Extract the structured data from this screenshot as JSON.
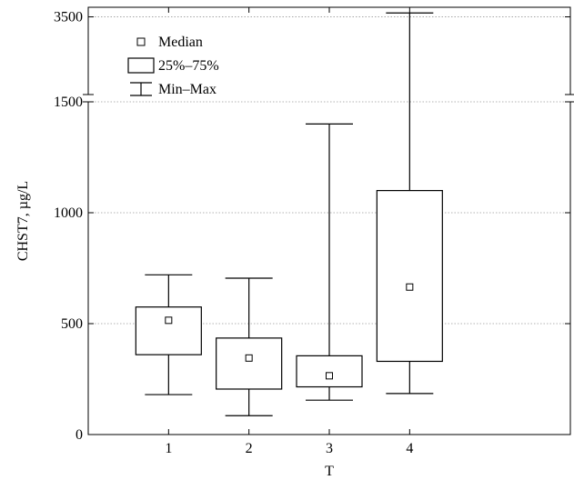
{
  "chart_data": {
    "type": "boxplot",
    "title": "",
    "xlabel": "T",
    "ylabel": "CHST7, µg/L",
    "categories": [
      "1",
      "2",
      "3",
      "4"
    ],
    "y_axis": {
      "broken": true,
      "lower_segment": {
        "range": [
          0,
          1500
        ],
        "ticks": [
          0,
          500,
          1000,
          1500
        ]
      },
      "upper_segment": {
        "range": [
          1500,
          3700
        ],
        "ticks": [
          3500
        ]
      }
    },
    "grid": "horizontal-dotted",
    "legend": {
      "placement": "top-left",
      "items": [
        {
          "label": "Median",
          "symbol": "square-marker"
        },
        {
          "label": "25%–75%",
          "symbol": "box"
        },
        {
          "label": "Min–Max",
          "symbol": "whisker"
        }
      ]
    },
    "boxes": [
      {
        "category": "1",
        "min": 180,
        "q1": 360,
        "median": 515,
        "q3": 575,
        "max": 720
      },
      {
        "category": "2",
        "min": 85,
        "q1": 205,
        "median": 345,
        "q3": 435,
        "max": 705
      },
      {
        "category": "3",
        "min": 155,
        "q1": 215,
        "median": 265,
        "q3": 355,
        "max": 1400
      },
      {
        "category": "4",
        "min": 185,
        "q1": 330,
        "median": 665,
        "q3": 1100,
        "max": 3600
      }
    ]
  }
}
